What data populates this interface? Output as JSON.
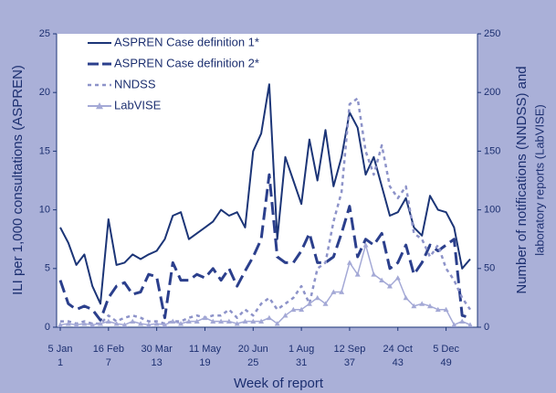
{
  "chart_data": {
    "type": "line",
    "ylabel": "ILI per 1,000 consultations (ASPREN)",
    "y2label": [
      "Number of notifications (NNDSS) and",
      "laboratory reports (LabVISE)"
    ],
    "xlabel": "Week of report",
    "x": [
      1,
      2,
      3,
      4,
      5,
      6,
      7,
      8,
      9,
      10,
      11,
      12,
      13,
      14,
      15,
      16,
      17,
      18,
      19,
      20,
      21,
      22,
      23,
      24,
      25,
      26,
      27,
      28,
      29,
      30,
      31,
      32,
      33,
      34,
      35,
      36,
      37,
      38,
      39,
      40,
      41,
      42,
      43,
      44,
      45,
      46,
      47,
      48,
      49,
      50,
      51,
      52
    ],
    "xlim": [
      1,
      52
    ],
    "xticks": [
      {
        "value": 1,
        "label": "5 Jan"
      },
      {
        "value": 7,
        "label": "16 Feb"
      },
      {
        "value": 13,
        "label": "30 Mar"
      },
      {
        "value": 19,
        "label": "11 May"
      },
      {
        "value": 25,
        "label": "20 Jun"
      },
      {
        "value": 31,
        "label": "1 Aug"
      },
      {
        "value": 37,
        "label": "12 Sep"
      },
      {
        "value": 43,
        "label": "24 Oct"
      },
      {
        "value": 49,
        "label": "5 Dec"
      }
    ],
    "ylim": [
      0,
      25
    ],
    "yticks": [
      0,
      5,
      10,
      15,
      20,
      25
    ],
    "y2lim": [
      0,
      250
    ],
    "y2ticks": [
      0,
      50,
      100,
      150,
      200,
      250
    ],
    "grid": false,
    "legend": "upper left",
    "series": [
      {
        "name": "ASPREN Case definition 1*",
        "color": "#1c3577",
        "dash": "solid",
        "marker": "none",
        "axis": "y",
        "values": [
          8.5,
          7.2,
          5.3,
          6.2,
          3.5,
          2.0,
          9.2,
          5.3,
          5.5,
          6.2,
          5.8,
          6.2,
          6.5,
          7.5,
          9.5,
          9.8,
          7.5,
          8.0,
          8.5,
          9.0,
          10.0,
          9.5,
          9.8,
          8.5,
          15,
          16.5,
          20.7,
          7.5,
          14.5,
          12.5,
          10.5,
          16,
          12.5,
          16.8,
          12,
          14.5,
          18.3,
          17,
          13,
          14.5,
          12,
          9.5,
          9.8,
          11,
          8.5,
          7.8,
          11.2,
          10,
          9.8,
          8.5,
          5,
          5.8
        ]
      },
      {
        "name": "ASPREN Case definition 2*",
        "color": "#2b3f8c",
        "dash": "long",
        "marker": "none",
        "axis": "y",
        "values": [
          4.0,
          2.0,
          1.5,
          1.8,
          1.5,
          0.6,
          2.5,
          3.5,
          3.8,
          2.8,
          3.0,
          4.5,
          4.3,
          0.8,
          5.5,
          4.0,
          4.0,
          4.5,
          4.2,
          5.0,
          4.0,
          5.0,
          3.5,
          4.8,
          6.0,
          7.5,
          13,
          6.0,
          5.5,
          5.5,
          6.5,
          8.0,
          5.5,
          5.5,
          6.0,
          8.0,
          10.3,
          6.0,
          7.5,
          7.0,
          8.0,
          5.0,
          5.5,
          7.0,
          4.5,
          5.5,
          7.0,
          6.5,
          7.0,
          7.5,
          1.0,
          0.8
        ]
      },
      {
        "name": "NNDSS",
        "color": "#8d93c9",
        "dash": "short",
        "marker": "none",
        "axis": "y2",
        "values": [
          5,
          5,
          3,
          5,
          3,
          3,
          10,
          5,
          8,
          10,
          8,
          5,
          5,
          3,
          5,
          5,
          8,
          10,
          8,
          10,
          10,
          15,
          8,
          15,
          10,
          20,
          25,
          15,
          20,
          25,
          35,
          20,
          50,
          55,
          90,
          115,
          190,
          195,
          150,
          130,
          155,
          120,
          110,
          120,
          80,
          75,
          60,
          70,
          50,
          40,
          25,
          15
        ]
      },
      {
        "name": "LabVISE",
        "color": "#a4a9d6",
        "dash": "solid",
        "marker": "triangle",
        "axis": "y2",
        "values": [
          2,
          3,
          2,
          3,
          2,
          3,
          5,
          3,
          2,
          5,
          3,
          2,
          3,
          2,
          5,
          3,
          5,
          5,
          8,
          5,
          5,
          5,
          3,
          5,
          5,
          5,
          8,
          3,
          10,
          15,
          15,
          20,
          25,
          20,
          30,
          30,
          55,
          45,
          70,
          45,
          40,
          35,
          42,
          25,
          18,
          20,
          18,
          15,
          15,
          2,
          5,
          2
        ]
      }
    ]
  }
}
